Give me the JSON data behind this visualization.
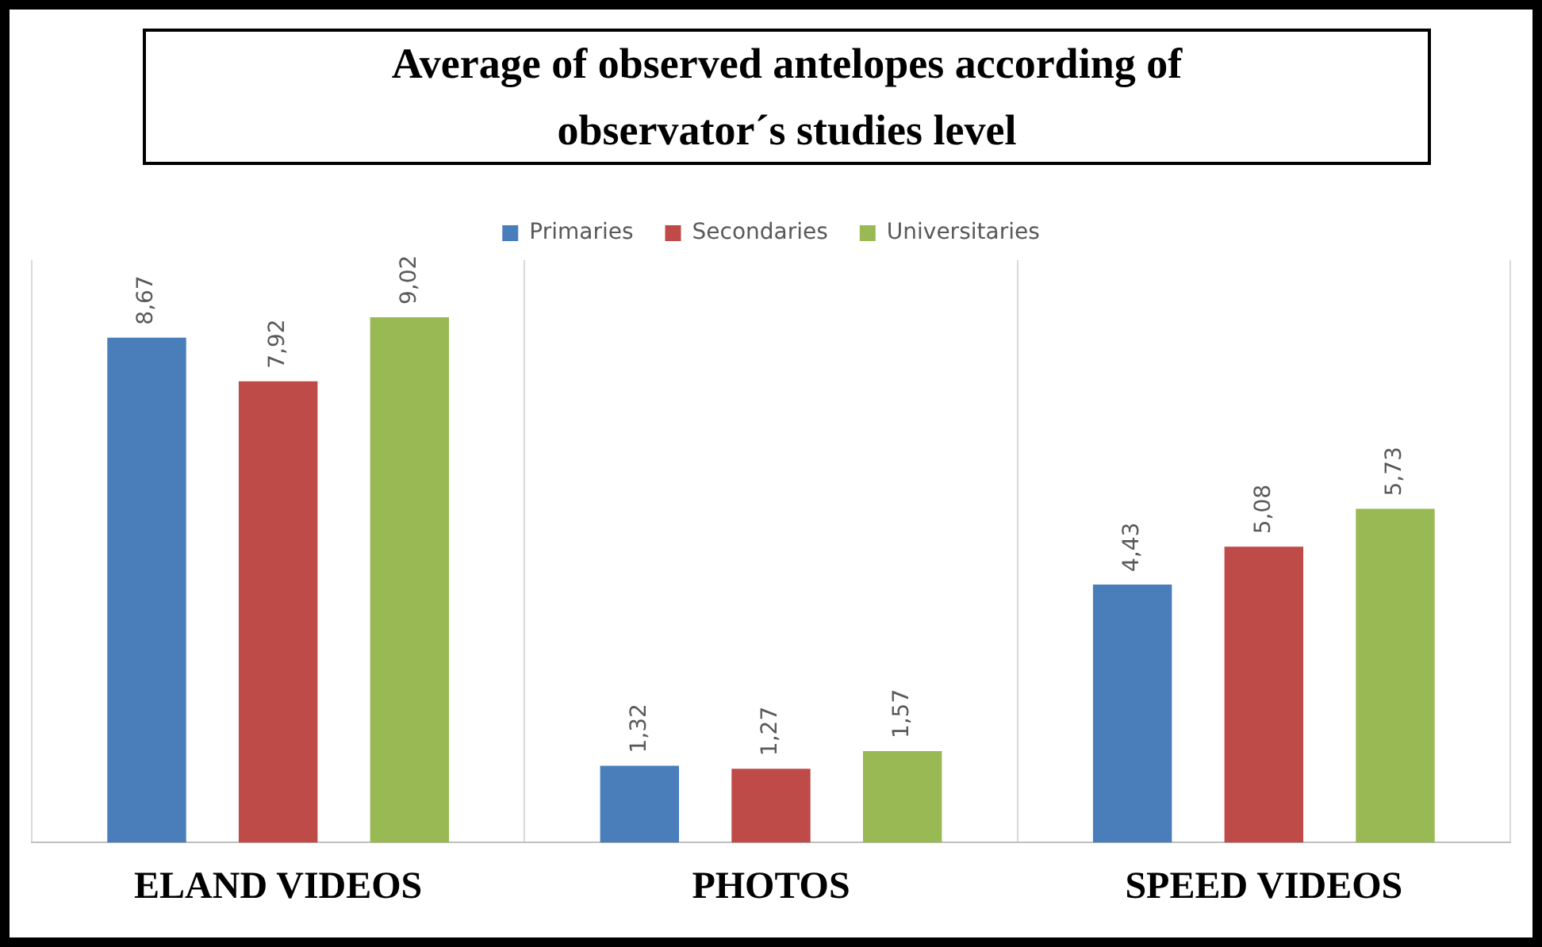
{
  "chart_data": {
    "type": "bar",
    "title": "Average of observed antelopes according of observator´s studies level",
    "categories": [
      "ELAND VIDEOS",
      "PHOTOS",
      "SPEED VIDEOS"
    ],
    "series": [
      {
        "name": "Primaries",
        "color": "#4a7ebb",
        "values": [
          8.67,
          1.32,
          4.43
        ],
        "value_labels": [
          "8,67",
          "1,32",
          "4,43"
        ]
      },
      {
        "name": "Secondaries",
        "color": "#be4b48",
        "values": [
          7.92,
          1.27,
          5.08
        ],
        "value_labels": [
          "7,92",
          "1,27",
          "5,08"
        ]
      },
      {
        "name": "Universitaries",
        "color": "#98b954",
        "values": [
          9.02,
          1.57,
          5.73
        ],
        "value_labels": [
          "9,02",
          "1,57",
          "5,73"
        ]
      }
    ],
    "grid": "x",
    "legend": "top"
  }
}
